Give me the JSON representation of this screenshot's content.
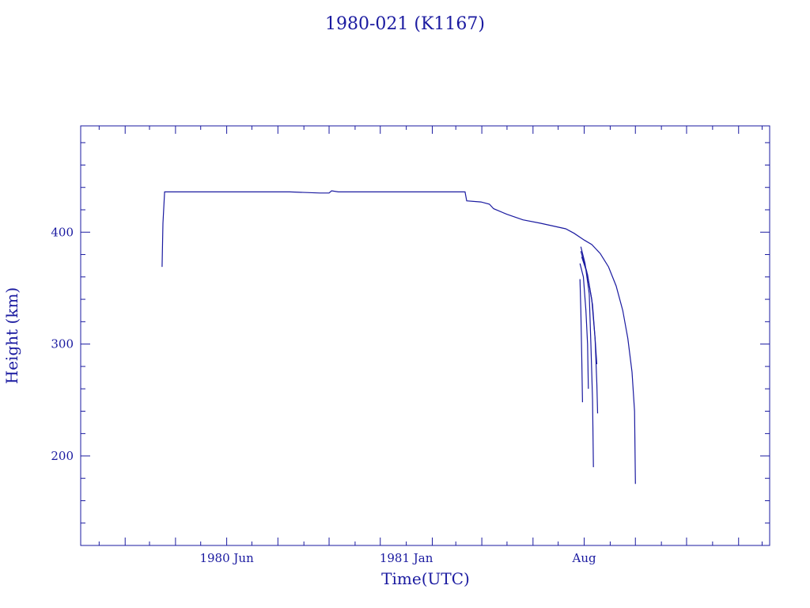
{
  "chart_data": {
    "type": "line",
    "title": "1980-021 (K1167)",
    "xlabel": "Time(UTC)",
    "ylabel": "Height (km)",
    "x_tick_labels": [
      {
        "date": "1980-06-01",
        "label": "1980 Jun"
      },
      {
        "date": "1981-01-01",
        "label": "1981 Jan"
      },
      {
        "date": "1981-08-01",
        "label": "Aug"
      }
    ],
    "y_tick_labels": [
      200,
      300,
      400
    ],
    "xlim": [
      "1979-12-10",
      "1982-03-10"
    ],
    "ylim": [
      120,
      495
    ],
    "grid": false,
    "color": "#1a1aa0",
    "series": [
      {
        "points": [
          [
            "1980-03-16",
            369
          ],
          [
            "1980-03-17",
            408
          ],
          [
            "1980-03-19",
            436
          ],
          [
            "1980-04-15",
            436
          ],
          [
            "1980-06-10",
            436
          ],
          [
            "1980-07-15",
            436
          ],
          [
            "1980-08-15",
            436
          ],
          [
            "1980-09-20",
            435
          ],
          [
            "1980-10-01",
            435
          ],
          [
            "1980-10-04",
            437
          ],
          [
            "1980-10-12",
            436
          ],
          [
            "1980-11-20",
            436
          ],
          [
            "1981-01-01",
            436
          ],
          [
            "1981-02-15",
            436
          ],
          [
            "1981-03-12",
            436
          ],
          [
            "1981-03-14",
            428
          ],
          [
            "1981-03-31",
            427
          ],
          [
            "1981-04-10",
            425
          ],
          [
            "1981-04-15",
            421
          ],
          [
            "1981-05-01",
            416
          ],
          [
            "1981-05-20",
            411
          ],
          [
            "1981-06-10",
            408
          ],
          [
            "1981-07-10",
            403
          ],
          [
            "1981-07-20",
            399
          ],
          [
            "1981-08-01",
            393
          ],
          [
            "1981-08-10",
            389
          ],
          [
            "1981-08-20",
            381
          ],
          [
            "1981-08-30",
            369
          ],
          [
            "1981-09-08",
            352
          ],
          [
            "1981-09-16",
            330
          ],
          [
            "1981-09-22",
            305
          ],
          [
            "1981-09-27",
            275
          ],
          [
            "1981-09-30",
            240
          ],
          [
            "1981-10-01",
            175
          ]
        ]
      },
      {
        "points": [
          [
            "1981-07-27",
            358
          ],
          [
            "1981-07-28",
            330
          ],
          [
            "1981-07-29",
            290
          ],
          [
            "1981-07-30",
            248
          ]
        ]
      },
      {
        "points": [
          [
            "1981-07-27",
            372
          ],
          [
            "1981-07-31",
            360
          ],
          [
            "1981-08-03",
            330
          ],
          [
            "1981-08-05",
            300
          ],
          [
            "1981-08-06",
            260
          ]
        ]
      },
      {
        "points": [
          [
            "1981-07-28",
            387
          ],
          [
            "1981-08-02",
            372
          ],
          [
            "1981-08-07",
            345
          ],
          [
            "1981-08-09",
            300
          ],
          [
            "1981-08-11",
            250
          ],
          [
            "1981-08-12",
            190
          ]
        ]
      },
      {
        "points": [
          [
            "1981-07-28",
            383
          ],
          [
            "1981-08-04",
            365
          ],
          [
            "1981-08-10",
            340
          ],
          [
            "1981-08-14",
            305
          ],
          [
            "1981-08-16",
            265
          ],
          [
            "1981-08-17",
            238
          ]
        ]
      },
      {
        "points": [
          [
            "1981-07-29",
            378
          ],
          [
            "1981-08-05",
            362
          ],
          [
            "1981-08-11",
            335
          ],
          [
            "1981-08-14",
            305
          ],
          [
            "1981-08-16",
            282
          ]
        ]
      }
    ]
  }
}
